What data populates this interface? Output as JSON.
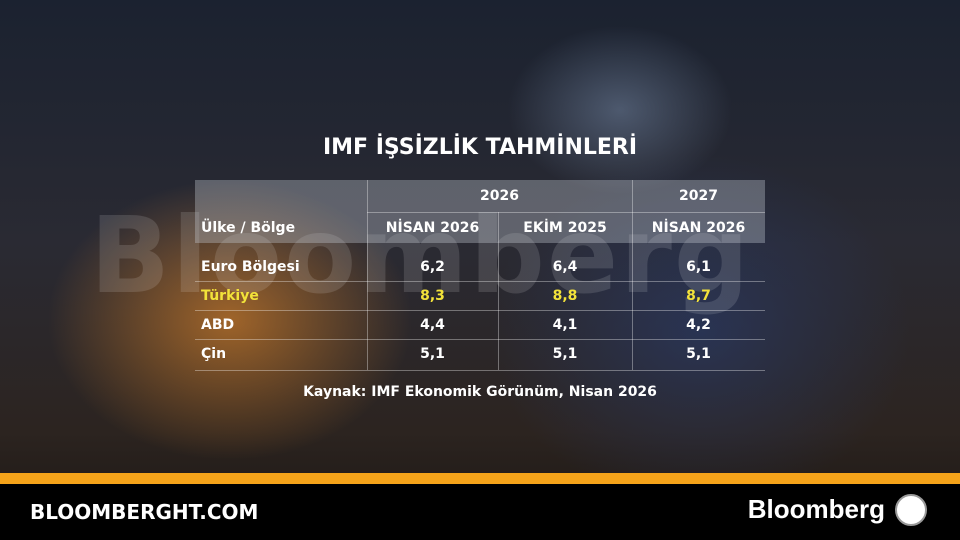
{
  "title": "IMF İŞSİZLİK TAHMİNLERİ",
  "watermark": "Bloomberg",
  "table": {
    "group_header": [
      "2026",
      "2027"
    ],
    "columns": [
      "Ülke / Bölge",
      "NİSAN 2026",
      "EKİM 2025",
      "NİSAN 2026"
    ],
    "rows": [
      [
        "Euro Bölgesi",
        "6,2",
        "6,4",
        "6,1"
      ],
      [
        "Türkiye",
        "8,3",
        "8,8",
        "8,7"
      ],
      [
        "ABD",
        "4,4",
        "4,1",
        "4,2"
      ],
      [
        "Çin",
        "5,1",
        "5,1",
        "5,1"
      ]
    ],
    "highlight": {
      "row": 1,
      "color": "#f2e23a"
    }
  },
  "source": "Kaynak: IMF Ekonomik Görünüm, Nisan 2026",
  "footer": {
    "site": "BLOOMBERGHT.COM",
    "brand": "Bloomberg"
  }
}
